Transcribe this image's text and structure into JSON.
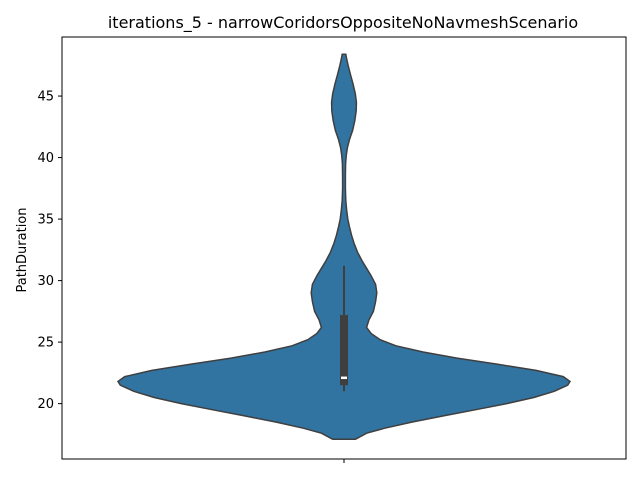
{
  "chart_data": {
    "type": "violin",
    "title": "iterations_5 - narrowCoridorsOppositeNoNavmeshScenario",
    "xlabel": "",
    "ylabel": "PathDuration",
    "ylim": [
      15.5,
      49.8
    ],
    "yticks": [
      20,
      25,
      30,
      35,
      40,
      45
    ],
    "xticks": [
      ""
    ],
    "grid": false,
    "colors": {
      "violin": "#3274a1",
      "edge": "#3f3f3f",
      "box": "#3f3f3f",
      "median": "#ffffff"
    },
    "series": [
      {
        "category": "",
        "density": [
          [
            17.1,
            0.05
          ],
          [
            17.6,
            0.1
          ],
          [
            18.0,
            0.18
          ],
          [
            18.5,
            0.3
          ],
          [
            19.0,
            0.44
          ],
          [
            19.5,
            0.58
          ],
          [
            20.0,
            0.72
          ],
          [
            20.5,
            0.84
          ],
          [
            21.0,
            0.93
          ],
          [
            21.5,
            0.99
          ],
          [
            21.8,
            1.0
          ],
          [
            22.2,
            0.97
          ],
          [
            22.7,
            0.85
          ],
          [
            23.2,
            0.68
          ],
          [
            23.7,
            0.5
          ],
          [
            24.2,
            0.35
          ],
          [
            24.7,
            0.23
          ],
          [
            25.2,
            0.16
          ],
          [
            25.7,
            0.12
          ],
          [
            26.2,
            0.1
          ],
          [
            26.8,
            0.11
          ],
          [
            27.5,
            0.13
          ],
          [
            28.3,
            0.14
          ],
          [
            29.0,
            0.145
          ],
          [
            29.7,
            0.14
          ],
          [
            30.4,
            0.12
          ],
          [
            31.0,
            0.1
          ],
          [
            31.6,
            0.08
          ],
          [
            32.3,
            0.06
          ],
          [
            33.0,
            0.045
          ],
          [
            33.7,
            0.033
          ],
          [
            34.4,
            0.024
          ],
          [
            35.0,
            0.017
          ],
          [
            35.7,
            0.012
          ],
          [
            36.5,
            0.008
          ],
          [
            37.5,
            0.006
          ],
          [
            38.5,
            0.006
          ],
          [
            39.5,
            0.007
          ],
          [
            40.2,
            0.01
          ],
          [
            40.8,
            0.015
          ],
          [
            41.5,
            0.025
          ],
          [
            42.2,
            0.038
          ],
          [
            43.0,
            0.048
          ],
          [
            43.8,
            0.054
          ],
          [
            44.5,
            0.055
          ],
          [
            45.2,
            0.05
          ],
          [
            46.0,
            0.04
          ],
          [
            46.8,
            0.028
          ],
          [
            47.5,
            0.018
          ],
          [
            48.0,
            0.012
          ],
          [
            48.4,
            0.008
          ]
        ],
        "box": {
          "whisker_low": 21.0,
          "q1": 21.5,
          "median": 22.1,
          "q3": 27.2,
          "whisker_high": 31.2
        }
      }
    ]
  }
}
